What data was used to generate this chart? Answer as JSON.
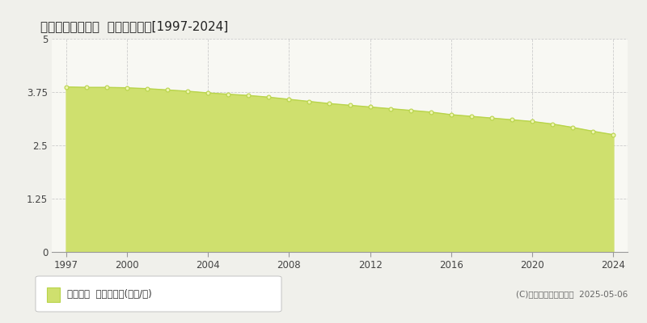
{
  "title": "熊毛郡平生町佐賀  基準地価推移[1997-2024]",
  "years": [
    1997,
    1998,
    1999,
    2000,
    2001,
    2002,
    2003,
    2004,
    2005,
    2006,
    2007,
    2008,
    2009,
    2010,
    2011,
    2012,
    2013,
    2014,
    2015,
    2016,
    2017,
    2018,
    2019,
    2020,
    2021,
    2022,
    2023,
    2024
  ],
  "values": [
    3.87,
    3.86,
    3.86,
    3.85,
    3.83,
    3.8,
    3.77,
    3.73,
    3.7,
    3.67,
    3.63,
    3.58,
    3.53,
    3.48,
    3.44,
    3.4,
    3.36,
    3.32,
    3.28,
    3.22,
    3.18,
    3.14,
    3.1,
    3.06,
    3.0,
    2.92,
    2.83,
    2.75
  ],
  "line_color": "#b8d44a",
  "fill_color": "#cfe06e",
  "marker_facecolor": "#eef5b0",
  "marker_edgecolor": "#b8d44a",
  "bg_color": "#f0f0eb",
  "plot_bg_color": "#f8f8f3",
  "grid_color": "#cccccc",
  "grid_linestyle": "--",
  "ylim": [
    0,
    5
  ],
  "yticks": [
    0,
    1.25,
    2.5,
    3.75,
    5
  ],
  "ytick_labels": [
    "0",
    "1.25",
    "2.5",
    "3.75",
    "5"
  ],
  "xticks": [
    1997,
    2000,
    2004,
    2008,
    2012,
    2016,
    2020,
    2024
  ],
  "xlim_left": 1996.3,
  "xlim_right": 2024.7,
  "legend_label": "基準地価  平均坪単価(万円/坪)",
  "copyright": "(C)土地価格ドットコム  2025-05-06"
}
